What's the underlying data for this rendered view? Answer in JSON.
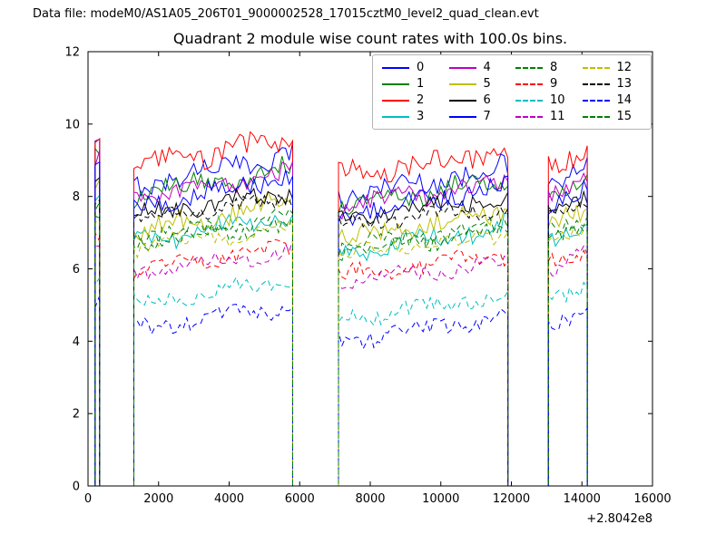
{
  "header": {
    "text": "Data file: modeM0/AS1A05_206T01_9000002528_17015cztM0_level2_quad_clean.evt"
  },
  "chart_data": {
    "type": "line",
    "title": "Quadrant 2 module wise count rates with 100.0s bins.",
    "xlabel": "",
    "ylabel": "",
    "xlim": [
      0,
      16000
    ],
    "ylim": [
      0,
      12
    ],
    "x_ticks": [
      0,
      2000,
      4000,
      6000,
      8000,
      10000,
      12000,
      14000,
      16000
    ],
    "y_ticks": [
      0,
      2,
      4,
      6,
      8,
      10,
      12
    ],
    "x_offset_label": "+2.8042e8",
    "grid": false,
    "legend": {
      "ncol": 4,
      "location": "upper right",
      "labels": [
        "0",
        "1",
        "2",
        "3",
        "4",
        "5",
        "6",
        "7",
        "8",
        "9",
        "10",
        "11",
        "12",
        "13",
        "14",
        "15"
      ]
    },
    "baseline_value": 0,
    "sample_step_x": 100,
    "series": [
      {
        "label": "0",
        "color": "#0000ff",
        "style": "solid",
        "noise": 0.3,
        "segments": [
          {
            "x": [
              200,
              330
            ],
            "y": [
              9.3,
              9.3
            ]
          },
          {
            "x": [
              1300,
              5800
            ],
            "y": [
              8.3,
              9.2
            ]
          },
          {
            "x": [
              7100,
              11900
            ],
            "y": [
              8.0,
              8.8
            ]
          },
          {
            "x": [
              13050,
              14150
            ],
            "y": [
              8.3,
              8.7
            ]
          }
        ]
      },
      {
        "label": "1",
        "color": "#008000",
        "style": "solid",
        "noise": 0.28,
        "segments": [
          {
            "x": [
              200,
              330
            ],
            "y": [
              9.0,
              9.0
            ]
          },
          {
            "x": [
              1300,
              5800
            ],
            "y": [
              8.0,
              8.8
            ]
          },
          {
            "x": [
              7100,
              11900
            ],
            "y": [
              7.7,
              8.5
            ]
          },
          {
            "x": [
              13050,
              14150
            ],
            "y": [
              8.0,
              8.4
            ]
          }
        ]
      },
      {
        "label": "2",
        "color": "#ff0000",
        "style": "solid",
        "noise": 0.3,
        "segments": [
          {
            "x": [
              200,
              330
            ],
            "y": [
              9.6,
              9.6
            ]
          },
          {
            "x": [
              1300,
              5800
            ],
            "y": [
              8.8,
              9.6
            ]
          },
          {
            "x": [
              7100,
              11900
            ],
            "y": [
              8.6,
              9.2
            ]
          },
          {
            "x": [
              13050,
              14150
            ],
            "y": [
              8.8,
              9.3
            ]
          }
        ]
      },
      {
        "label": "3",
        "color": "#00bfbf",
        "style": "solid",
        "noise": 0.25,
        "segments": [
          {
            "x": [
              200,
              330
            ],
            "y": [
              8.0,
              8.0
            ]
          },
          {
            "x": [
              1300,
              5800
            ],
            "y": [
              6.7,
              7.5
            ]
          },
          {
            "x": [
              7100,
              11900
            ],
            "y": [
              6.4,
              7.2
            ]
          },
          {
            "x": [
              13050,
              14150
            ],
            "y": [
              6.9,
              7.3
            ]
          }
        ]
      },
      {
        "label": "4",
        "color": "#bf00bf",
        "style": "solid",
        "noise": 0.27,
        "segments": [
          {
            "x": [
              200,
              330
            ],
            "y": [
              9.0,
              9.0
            ]
          },
          {
            "x": [
              1300,
              5800
            ],
            "y": [
              7.9,
              8.7
            ]
          },
          {
            "x": [
              7100,
              11900
            ],
            "y": [
              7.7,
              8.4
            ]
          },
          {
            "x": [
              13050,
              14150
            ],
            "y": [
              8.0,
              8.3
            ]
          }
        ]
      },
      {
        "label": "5",
        "color": "#bfbf00",
        "style": "solid",
        "noise": 0.27,
        "segments": [
          {
            "x": [
              200,
              330
            ],
            "y": [
              8.3,
              8.3
            ]
          },
          {
            "x": [
              1300,
              5800
            ],
            "y": [
              7.0,
              7.9
            ]
          },
          {
            "x": [
              7100,
              11900
            ],
            "y": [
              6.8,
              7.6
            ]
          },
          {
            "x": [
              13050,
              14150
            ],
            "y": [
              7.2,
              7.6
            ]
          }
        ]
      },
      {
        "label": "6",
        "color": "#000000",
        "style": "solid",
        "noise": 0.22,
        "segments": [
          {
            "x": [
              200,
              330
            ],
            "y": [
              8.6,
              8.6
            ]
          },
          {
            "x": [
              1300,
              5800
            ],
            "y": [
              7.5,
              8.1
            ]
          },
          {
            "x": [
              7100,
              11900
            ],
            "y": [
              7.4,
              8.0
            ]
          },
          {
            "x": [
              13050,
              14150
            ],
            "y": [
              7.7,
              8.1
            ]
          }
        ]
      },
      {
        "label": "7",
        "color": "#0000ff",
        "style": "solid",
        "noise": 0.26,
        "segments": [
          {
            "x": [
              200,
              330
            ],
            "y": [
              8.8,
              8.8
            ]
          },
          {
            "x": [
              1300,
              5800
            ],
            "y": [
              7.7,
              8.6
            ]
          },
          {
            "x": [
              7100,
              11900
            ],
            "y": [
              7.5,
              8.3
            ]
          },
          {
            "x": [
              13050,
              14150
            ],
            "y": [
              7.8,
              8.2
            ]
          }
        ]
      },
      {
        "label": "8",
        "color": "#008000",
        "style": "dashed",
        "noise": 0.22,
        "segments": [
          {
            "x": [
              200,
              330
            ],
            "y": [
              7.6,
              7.6
            ]
          },
          {
            "x": [
              1300,
              5800
            ],
            "y": [
              6.9,
              7.4
            ]
          },
          {
            "x": [
              7100,
              11900
            ],
            "y": [
              6.6,
              7.2
            ]
          },
          {
            "x": [
              13050,
              14150
            ],
            "y": [
              7.0,
              7.3
            ]
          }
        ]
      },
      {
        "label": "9",
        "color": "#ff0000",
        "style": "dashed",
        "noise": 0.2,
        "segments": [
          {
            "x": [
              200,
              330
            ],
            "y": [
              7.0,
              7.0
            ]
          },
          {
            "x": [
              1300,
              5800
            ],
            "y": [
              6.0,
              6.6
            ]
          },
          {
            "x": [
              7100,
              11900
            ],
            "y": [
              5.8,
              6.4
            ]
          },
          {
            "x": [
              13050,
              14150
            ],
            "y": [
              6.1,
              6.5
            ]
          }
        ]
      },
      {
        "label": "10",
        "color": "#00bfbf",
        "style": "dashed",
        "noise": 0.2,
        "segments": [
          {
            "x": [
              200,
              330
            ],
            "y": [
              5.8,
              5.8
            ]
          },
          {
            "x": [
              1300,
              5800
            ],
            "y": [
              5.0,
              5.7
            ]
          },
          {
            "x": [
              7100,
              11900
            ],
            "y": [
              4.6,
              5.3
            ]
          },
          {
            "x": [
              13050,
              14150
            ],
            "y": [
              5.2,
              5.6
            ]
          }
        ]
      },
      {
        "label": "11",
        "color": "#bf00bf",
        "style": "dashed",
        "noise": 0.2,
        "segments": [
          {
            "x": [
              200,
              330
            ],
            "y": [
              6.6,
              6.6
            ]
          },
          {
            "x": [
              1300,
              5800
            ],
            "y": [
              5.9,
              6.5
            ]
          },
          {
            "x": [
              7100,
              11900
            ],
            "y": [
              5.6,
              6.2
            ]
          },
          {
            "x": [
              13050,
              14150
            ],
            "y": [
              6.0,
              6.4
            ]
          }
        ]
      },
      {
        "label": "12",
        "color": "#bfbf00",
        "style": "dashed",
        "noise": 0.2,
        "segments": [
          {
            "x": [
              200,
              330
            ],
            "y": [
              7.3,
              7.3
            ]
          },
          {
            "x": [
              1300,
              5800
            ],
            "y": [
              6.6,
              7.1
            ]
          },
          {
            "x": [
              7100,
              11900
            ],
            "y": [
              6.4,
              6.9
            ]
          },
          {
            "x": [
              13050,
              14150
            ],
            "y": [
              6.7,
              7.0
            ]
          }
        ]
      },
      {
        "label": "13",
        "color": "#000000",
        "style": "dashed",
        "noise": 0.2,
        "segments": [
          {
            "x": [
              200,
              330
            ],
            "y": [
              8.0,
              8.0
            ]
          },
          {
            "x": [
              1300,
              5800
            ],
            "y": [
              7.4,
              7.9
            ]
          },
          {
            "x": [
              7100,
              11900
            ],
            "y": [
              7.2,
              7.7
            ]
          },
          {
            "x": [
              13050,
              14150
            ],
            "y": [
              7.5,
              7.8
            ]
          }
        ]
      },
      {
        "label": "14",
        "color": "#0000ff",
        "style": "dashed",
        "noise": 0.22,
        "segments": [
          {
            "x": [
              200,
              330
            ],
            "y": [
              5.2,
              5.2
            ]
          },
          {
            "x": [
              1300,
              5800
            ],
            "y": [
              4.3,
              5.0
            ]
          },
          {
            "x": [
              7100,
              11900
            ],
            "y": [
              4.0,
              4.7
            ]
          },
          {
            "x": [
              13050,
              14150
            ],
            "y": [
              4.5,
              4.9
            ]
          }
        ]
      },
      {
        "label": "15",
        "color": "#008000",
        "style": "dashed",
        "noise": 0.2,
        "segments": [
          {
            "x": [
              200,
              330
            ],
            "y": [
              7.4,
              7.4
            ]
          },
          {
            "x": [
              1300,
              5800
            ],
            "y": [
              6.7,
              7.2
            ]
          },
          {
            "x": [
              7100,
              11900
            ],
            "y": [
              6.5,
              7.0
            ]
          },
          {
            "x": [
              13050,
              14150
            ],
            "y": [
              6.8,
              7.1
            ]
          }
        ]
      }
    ]
  }
}
